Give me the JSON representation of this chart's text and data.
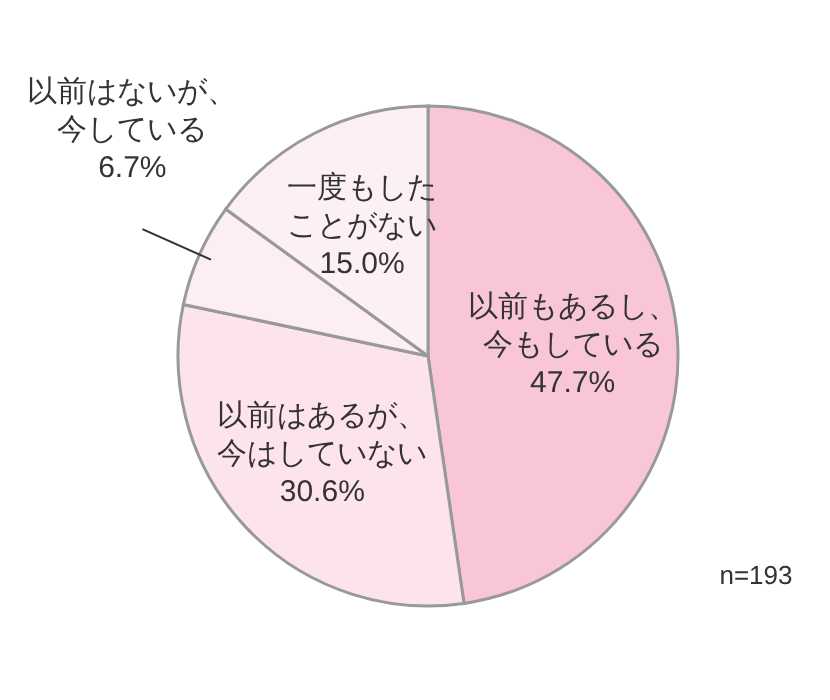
{
  "chart_data": {
    "type": "pie",
    "categories": [
      "以前もあるし、今もしている",
      "以前はあるが、今はしていない",
      "以前はないが、今している",
      "一度もしたことがない"
    ],
    "values": [
      47.7,
      30.6,
      6.7,
      15.0
    ],
    "colors": [
      "#f9c6d6",
      "#fce3ec",
      "#fdeef3",
      "#fdf0f5"
    ],
    "value_labels": [
      "47.7%",
      "30.6%",
      "6.7%",
      "15.0%"
    ],
    "annotations": [
      "n=193"
    ]
  }
}
